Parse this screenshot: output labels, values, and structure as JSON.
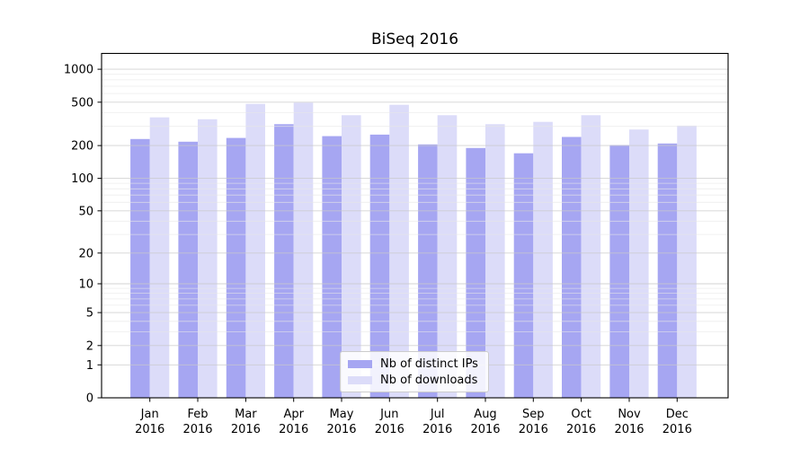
{
  "chart_data": {
    "type": "bar",
    "title": "BiSeq 2016",
    "categories": [
      "Jan",
      "Feb",
      "Mar",
      "Apr",
      "May",
      "Jun",
      "Jul",
      "Aug",
      "Sep",
      "Oct",
      "Nov",
      "Dec"
    ],
    "category_year": "2016",
    "series": [
      {
        "name": "Nb of distinct IPs",
        "color": "#a6a6f2",
        "values": [
          230,
          217,
          235,
          314,
          244,
          252,
          205,
          190,
          170,
          240,
          202,
          209
        ]
      },
      {
        "name": "Nb of downloads",
        "color": "#dcdcf9",
        "values": [
          363,
          349,
          482,
          495,
          380,
          473,
          380,
          314,
          330,
          380,
          281,
          305
        ]
      }
    ],
    "xlabel": "",
    "ylabel": "",
    "y_axis": {
      "scale": "log10(1+x)",
      "range": [
        0,
        1000
      ],
      "major_ticks": [
        0,
        1,
        2,
        5,
        10,
        20,
        50,
        100,
        200,
        500,
        1000
      ],
      "major_tick_labels": [
        "0",
        "1",
        "2",
        "5",
        "10",
        "20",
        "50",
        "100",
        "200",
        "500",
        "1000"
      ],
      "minor_ticks": [
        3,
        4,
        6,
        7,
        8,
        9,
        30,
        40,
        60,
        70,
        80,
        90,
        300,
        400,
        600,
        700,
        800,
        900
      ]
    },
    "grid": true,
    "legend": {
      "position": "lower center",
      "items": [
        "Nb of distinct IPs",
        "Nb of downloads"
      ]
    }
  },
  "colors": {
    "background": "#ffffff",
    "spine": "#000000",
    "text": "#000000",
    "grid_major": "#c9c9c9",
    "grid_minor": "#e7e7e7",
    "bar_ips": "#a6a6f2",
    "bar_downloads": "#dcdcf9",
    "legend_border": "#cccccc"
  }
}
